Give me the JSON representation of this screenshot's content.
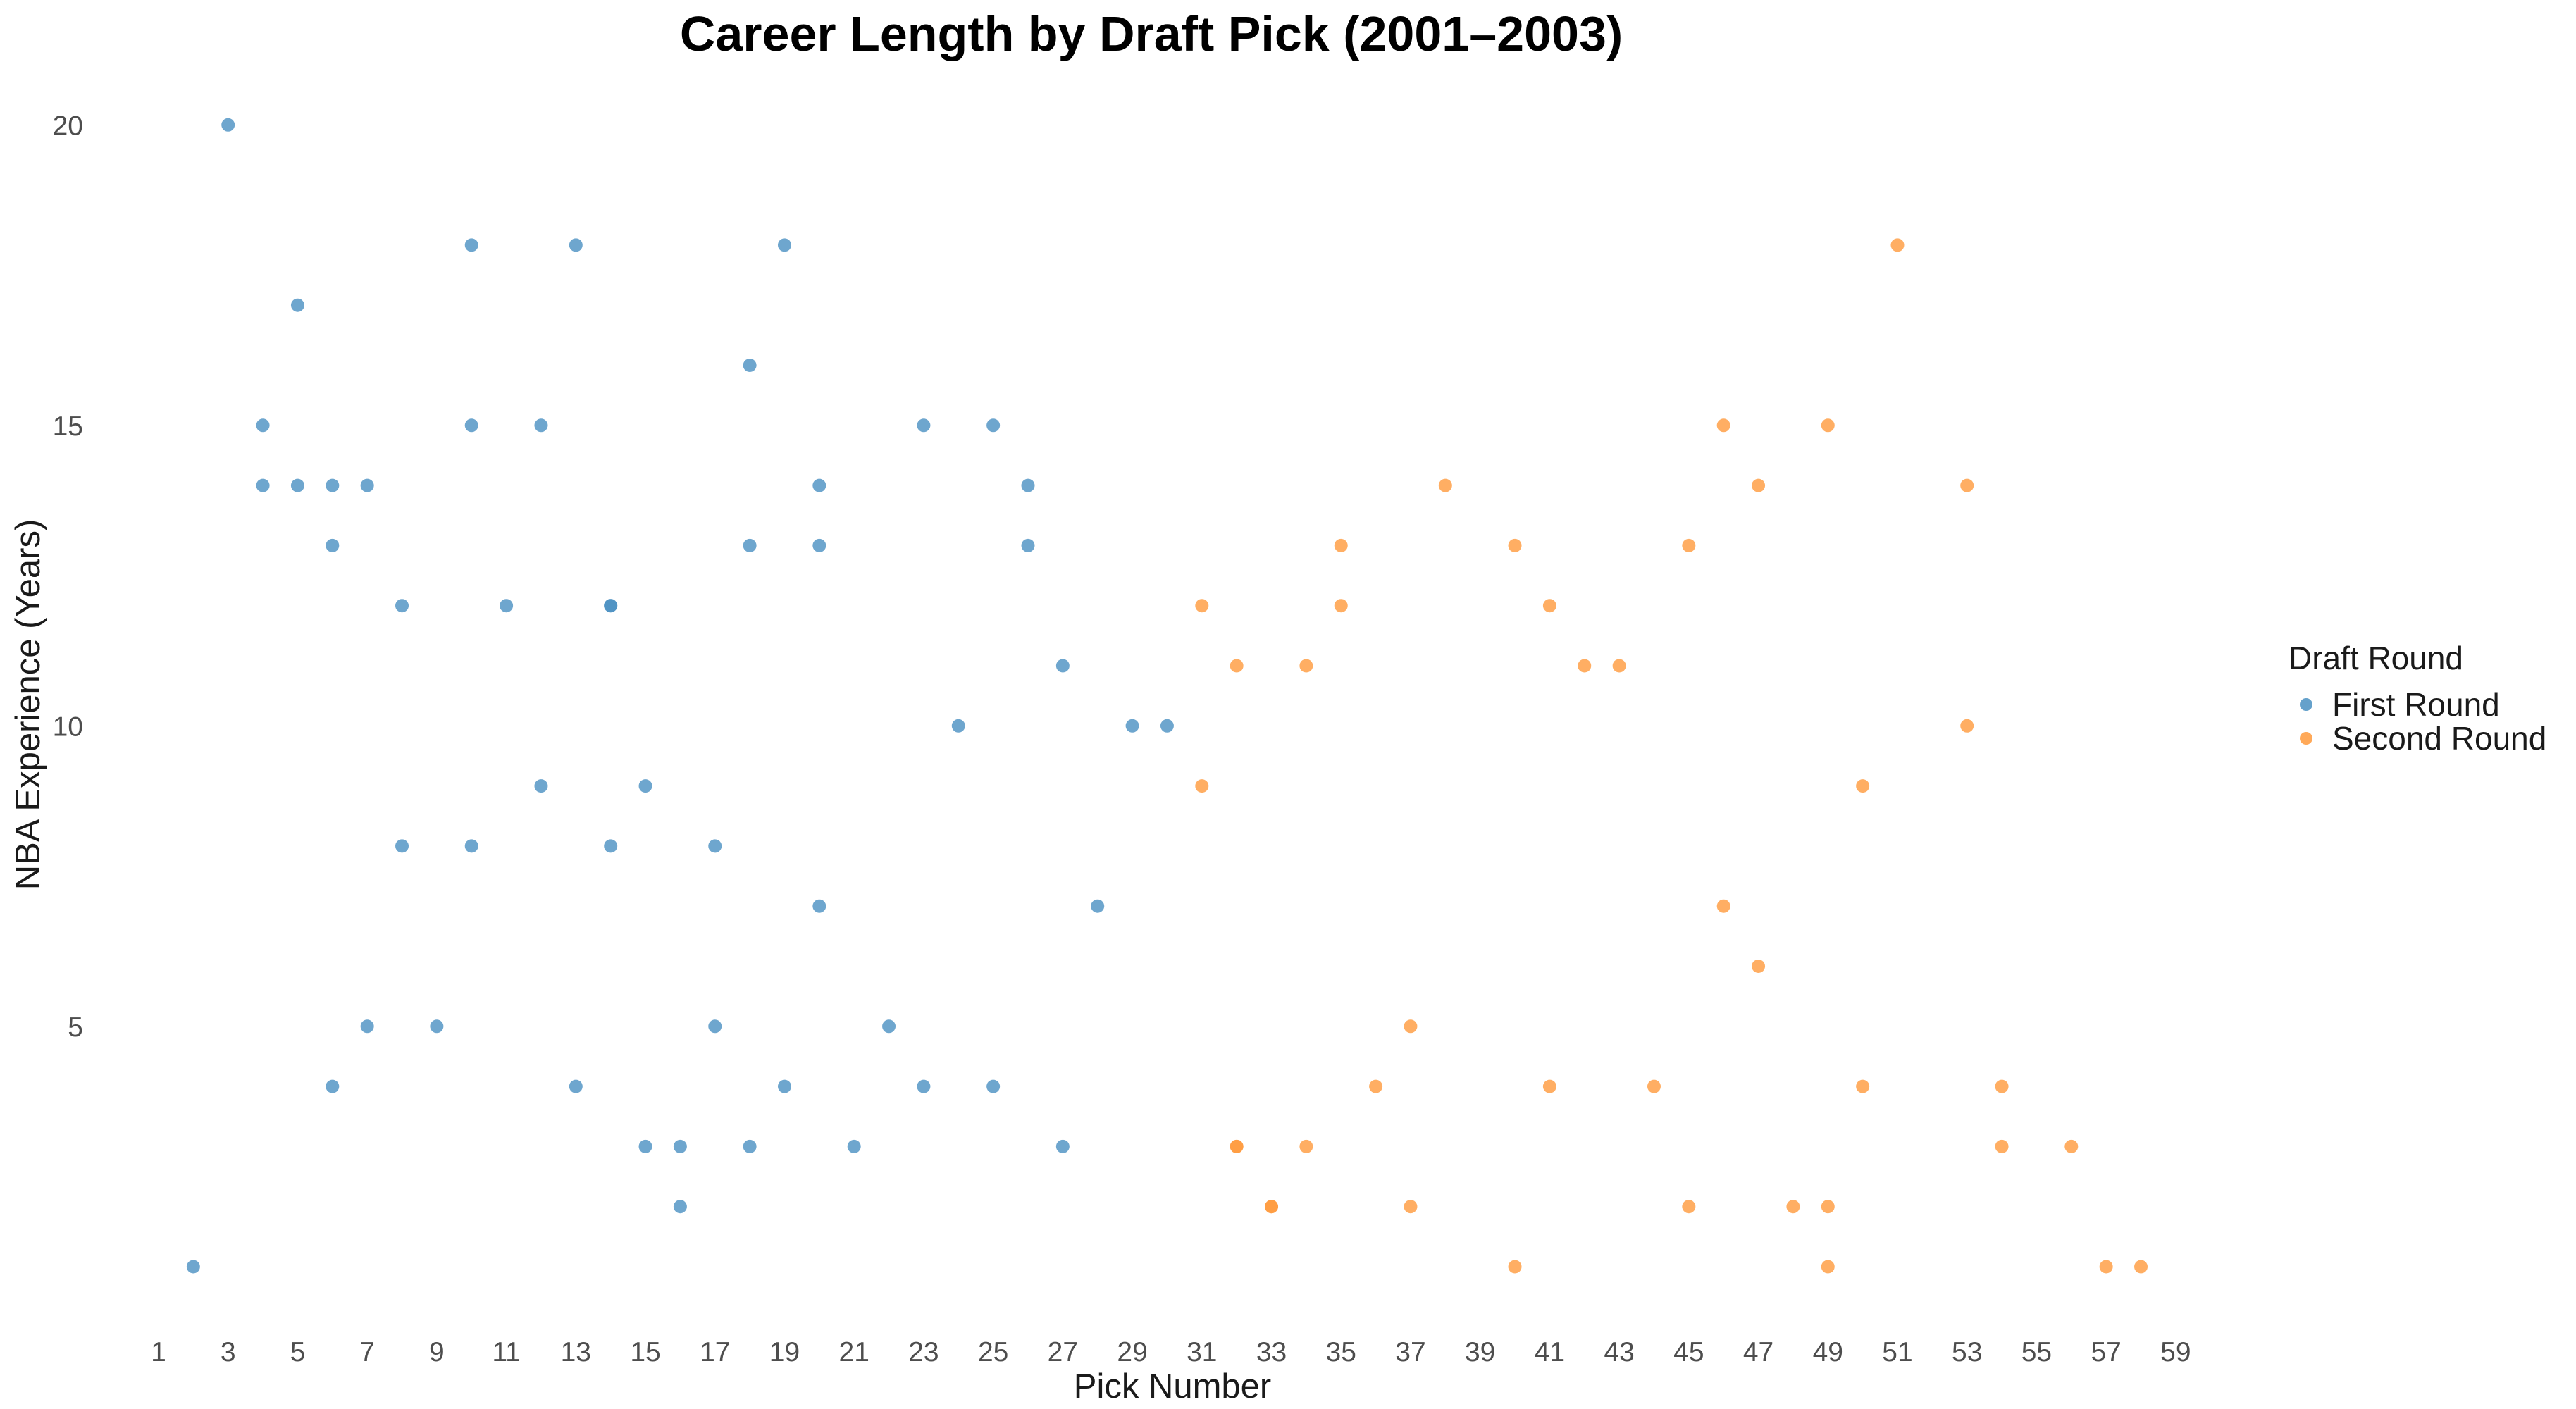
{
  "chart_data": {
    "type": "scatter",
    "title": "Career Length by Draft Pick (2001–2003)",
    "xlabel": "Pick Number",
    "ylabel": "NBA Experience (Years)",
    "xlim": [
      1,
      59
    ],
    "ylim": [
      1,
      20
    ],
    "xticks": [
      1,
      3,
      5,
      7,
      9,
      11,
      13,
      15,
      17,
      19,
      21,
      23,
      25,
      27,
      29,
      31,
      33,
      35,
      37,
      39,
      41,
      43,
      45,
      47,
      49,
      51,
      53,
      55,
      57,
      59
    ],
    "yticks": [
      5,
      10,
      15,
      20
    ],
    "grid": false,
    "legend": {
      "title": "Draft Round",
      "placement": "right"
    },
    "series": [
      {
        "name": "First Round",
        "color": "#4a90c2",
        "points": [
          [
            2,
            1
          ],
          [
            3,
            20
          ],
          [
            4,
            15
          ],
          [
            4,
            14
          ],
          [
            5,
            17
          ],
          [
            5,
            14
          ],
          [
            6,
            14
          ],
          [
            6,
            13
          ],
          [
            6,
            4
          ],
          [
            7,
            14
          ],
          [
            7,
            5
          ],
          [
            8,
            12
          ],
          [
            8,
            8
          ],
          [
            9,
            5
          ],
          [
            10,
            18
          ],
          [
            10,
            15
          ],
          [
            10,
            8
          ],
          [
            11,
            12
          ],
          [
            12,
            15
          ],
          [
            12,
            9
          ],
          [
            13,
            18
          ],
          [
            13,
            4
          ],
          [
            14,
            12
          ],
          [
            14,
            12
          ],
          [
            14,
            8
          ],
          [
            15,
            9
          ],
          [
            15,
            3
          ],
          [
            16,
            3
          ],
          [
            16,
            2
          ],
          [
            17,
            8
          ],
          [
            17,
            5
          ],
          [
            18,
            16
          ],
          [
            18,
            13
          ],
          [
            18,
            3
          ],
          [
            19,
            18
          ],
          [
            19,
            4
          ],
          [
            20,
            14
          ],
          [
            20,
            13
          ],
          [
            20,
            7
          ],
          [
            21,
            3
          ],
          [
            22,
            5
          ],
          [
            23,
            15
          ],
          [
            23,
            4
          ],
          [
            24,
            10
          ],
          [
            25,
            15
          ],
          [
            25,
            4
          ],
          [
            26,
            14
          ],
          [
            26,
            13
          ],
          [
            27,
            11
          ],
          [
            27,
            3
          ],
          [
            28,
            7
          ],
          [
            29,
            10
          ],
          [
            30,
            10
          ]
        ]
      },
      {
        "name": "Second Round",
        "color": "#ff9a3c",
        "points": [
          [
            31,
            12
          ],
          [
            31,
            9
          ],
          [
            32,
            11
          ],
          [
            32,
            3
          ],
          [
            32,
            3
          ],
          [
            33,
            2
          ],
          [
            33,
            2
          ],
          [
            34,
            11
          ],
          [
            34,
            3
          ],
          [
            35,
            13
          ],
          [
            35,
            12
          ],
          [
            36,
            4
          ],
          [
            37,
            5
          ],
          [
            37,
            2
          ],
          [
            38,
            14
          ],
          [
            40,
            13
          ],
          [
            40,
            1
          ],
          [
            41,
            12
          ],
          [
            41,
            4
          ],
          [
            42,
            11
          ],
          [
            43,
            11
          ],
          [
            44,
            4
          ],
          [
            45,
            13
          ],
          [
            45,
            2
          ],
          [
            46,
            15
          ],
          [
            46,
            7
          ],
          [
            47,
            14
          ],
          [
            47,
            6
          ],
          [
            48,
            2
          ],
          [
            49,
            15
          ],
          [
            49,
            2
          ],
          [
            49,
            1
          ],
          [
            50,
            9
          ],
          [
            50,
            4
          ],
          [
            51,
            18
          ],
          [
            53,
            14
          ],
          [
            53,
            10
          ],
          [
            54,
            4
          ],
          [
            54,
            3
          ],
          [
            56,
            3
          ],
          [
            57,
            1
          ],
          [
            58,
            1
          ]
        ]
      }
    ]
  }
}
